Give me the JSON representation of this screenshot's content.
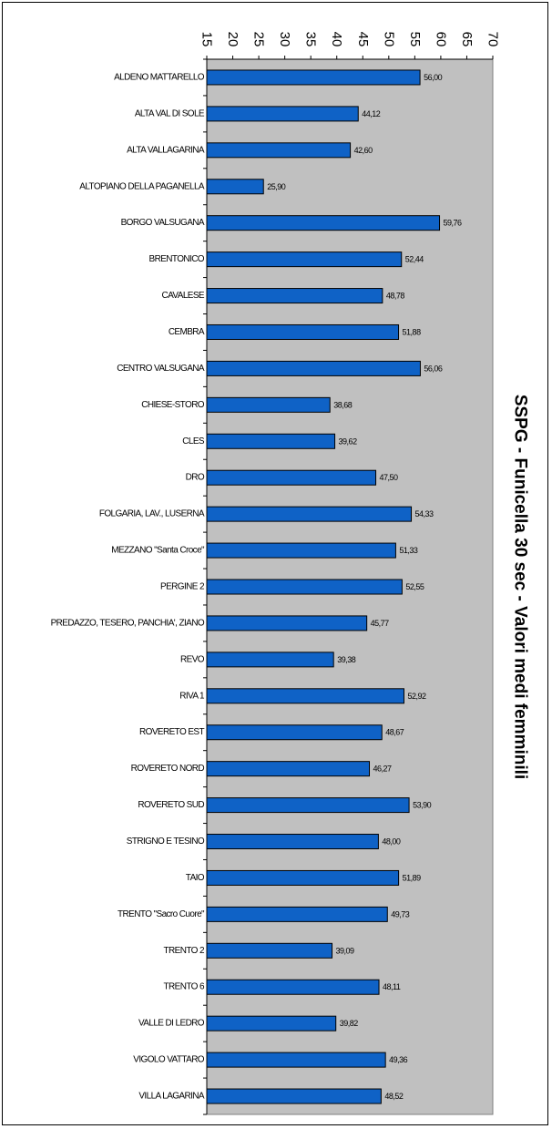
{
  "chart_data": {
    "type": "bar",
    "orientation": "horizontal",
    "title": "SSPG - Funicella 30 sec - Valori medi femminili",
    "xlim": [
      15,
      70
    ],
    "ticks": [
      "15",
      "20",
      "25",
      "30",
      "35",
      "40",
      "45",
      "50",
      "55",
      "60",
      "65",
      "70"
    ],
    "tick_values": [
      15,
      20,
      25,
      30,
      35,
      40,
      45,
      50,
      55,
      60,
      65,
      70
    ],
    "bar_color": "#0F62C6",
    "plot_background": "#C0C0C0",
    "categories": [
      "ALDENO MATTARELLO",
      "ALTA VAL DI SOLE",
      "ALTA VALLAGARINA",
      "ALTOPIANO DELLA PAGANELLA",
      "BORGO VALSUGANA",
      "BRENTONICO",
      "CAVALESE",
      "CEMBRA",
      "CENTRO VALSUGANA",
      "CHIESE-STORO",
      "CLES",
      "DRO",
      "FOLGARIA, LAV., LUSERNA",
      "MEZZANO \"Santa Croce\"",
      "PERGINE 2",
      "PREDAZZO, TESERO, PANCHIA', ZIANO",
      "REVO",
      "RIVA 1",
      "ROVERETO EST",
      "ROVERETO NORD",
      "ROVERETO SUD",
      "STRIGNO E TESINO",
      "TAIO",
      "TRENTO \"Sacro Cuore\"",
      "TRENTO 2",
      "TRENTO 6",
      "VALLE DI LEDRO",
      "VIGOLO VATTARO",
      "VILLA LAGARINA"
    ],
    "values": [
      56.0,
      44.12,
      42.6,
      25.9,
      59.76,
      52.44,
      48.78,
      51.88,
      56.06,
      38.68,
      39.62,
      47.5,
      54.33,
      51.33,
      52.55,
      45.77,
      39.38,
      52.92,
      48.67,
      46.27,
      53.9,
      48.0,
      51.89,
      49.73,
      39.09,
      48.11,
      39.82,
      49.36,
      48.52
    ],
    "value_labels": [
      "56,00",
      "44,12",
      "42,60",
      "25,90",
      "59,76",
      "52,44",
      "48,78",
      "51,88",
      "56,06",
      "38,68",
      "39,62",
      "47,50",
      "54,33",
      "51,33",
      "52,55",
      "45,77",
      "39,38",
      "52,92",
      "48,67",
      "46,27",
      "53,90",
      "48,00",
      "51,89",
      "49,73",
      "39,09",
      "48,11",
      "39,82",
      "49,36",
      "48,52"
    ]
  }
}
